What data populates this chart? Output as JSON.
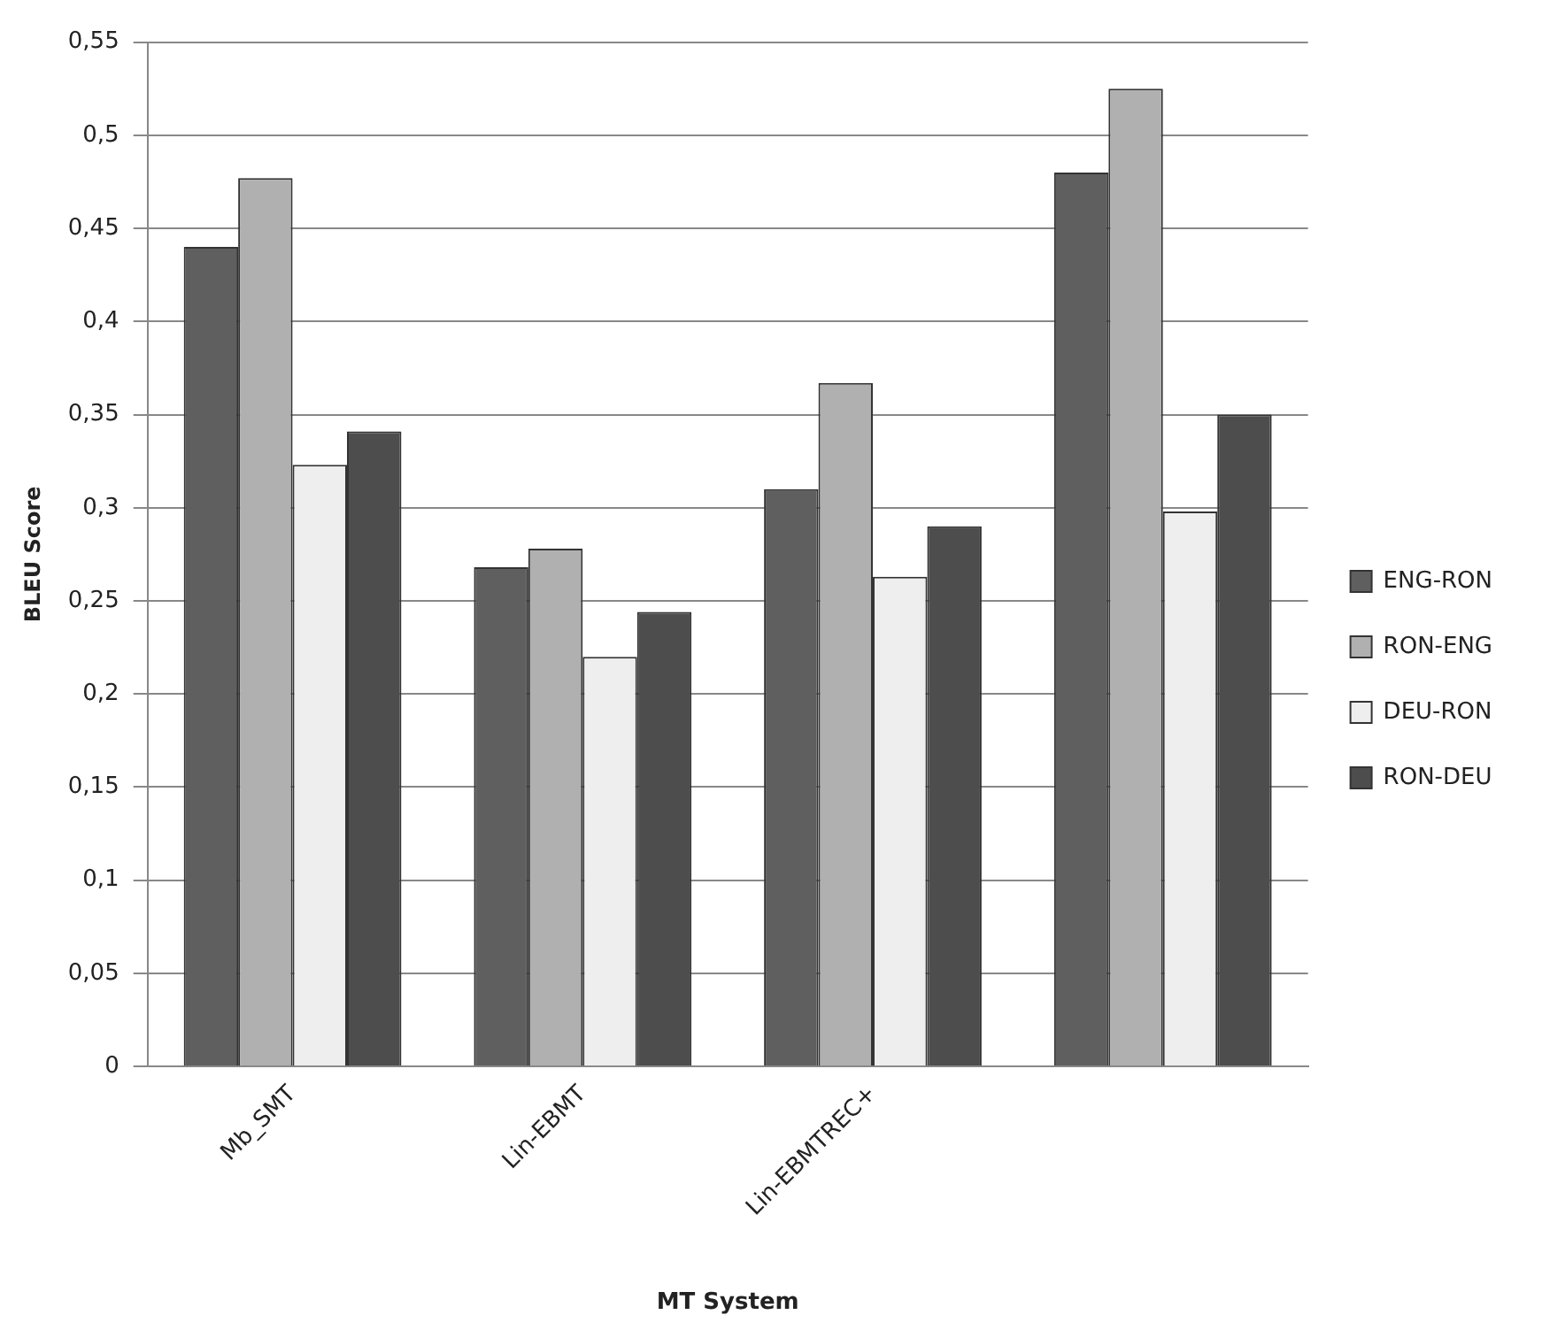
{
  "chart_data": {
    "type": "bar",
    "xlabel": "MT System",
    "ylabel": "BLEU Score",
    "categories": [
      "Mb_SMT",
      "Lin-EBMT",
      "Lin-EBMTREC+",
      null
    ],
    "series": [
      {
        "name": "ENG-RON",
        "color": "#5f5f5f",
        "values": [
          0.44,
          0.268,
          0.31,
          0.48
        ]
      },
      {
        "name": "RON-ENG",
        "color": "#b0b0b0",
        "values": [
          0.477,
          0.278,
          0.367,
          0.525
        ]
      },
      {
        "name": "DEU-RON",
        "color": "#eeeeee",
        "values": [
          0.323,
          0.22,
          0.263,
          0.298
        ]
      },
      {
        "name": "RON-DEU",
        "color": "#4d4d4d",
        "values": [
          0.341,
          0.244,
          0.29,
          0.35
        ]
      }
    ],
    "ylim": [
      0,
      0.55
    ],
    "yticks": [
      0,
      {
        "value": 0.05,
        "label": "0,05"
      },
      {
        "value": 0.1,
        "label": "0,1"
      },
      {
        "value": 0.15,
        "label": "0,15"
      },
      {
        "value": 0.2,
        "label": "0,2"
      },
      {
        "value": 0.25,
        "label": "0,25"
      },
      {
        "value": 0.3,
        "label": "0,3"
      },
      {
        "value": 0.35,
        "label": "0,35"
      },
      {
        "value": 0.4,
        "label": "0,4"
      },
      {
        "value": 0.45,
        "label": "0,45"
      },
      {
        "value": 0.5,
        "label": "0,5"
      },
      {
        "value": 0.55,
        "label": "0,55"
      }
    ],
    "grid": "y",
    "legend": "right"
  }
}
